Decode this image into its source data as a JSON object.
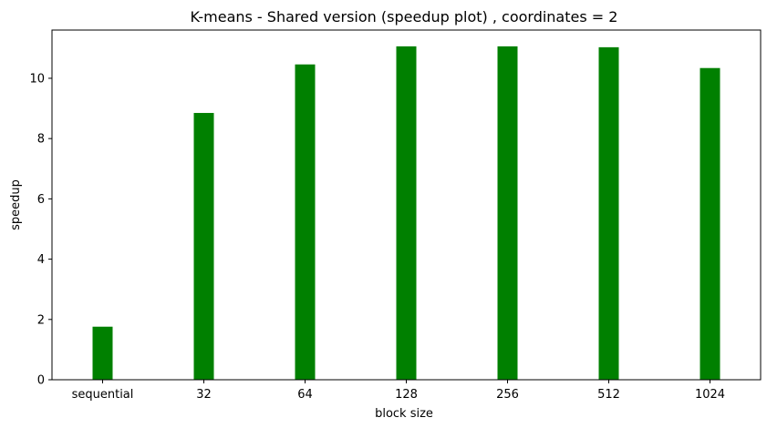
{
  "chart_data": {
    "type": "bar",
    "title": "K-means - Shared version (speedup plot) , coordinates = 2",
    "xlabel": "block size",
    "ylabel": "speedup",
    "categories": [
      "sequential",
      "32",
      "64",
      "128",
      "256",
      "512",
      "1024"
    ],
    "values": [
      1.76,
      8.85,
      10.46,
      11.06,
      11.06,
      11.03,
      10.34
    ],
    "ylim": [
      0,
      11.6
    ],
    "yticks": [
      0,
      2,
      4,
      6,
      8,
      10
    ],
    "bar_color": "#008000",
    "grid": false,
    "legend": false
  }
}
